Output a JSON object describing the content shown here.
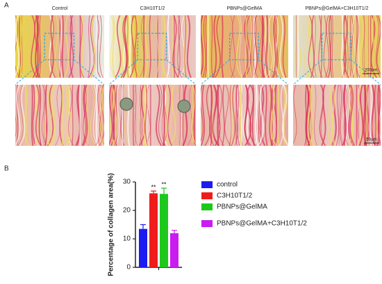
{
  "panel_a": {
    "label": "A",
    "columns": [
      "Control",
      "C3H10T1/2",
      "PBNPs@GelMA",
      "PBNPs@GelMA+C3H10T1/2"
    ],
    "scale_bars": [
      "200μm",
      "50μm"
    ]
  },
  "chart_data": {
    "type": "bar",
    "panel_label": "B",
    "ylabel": "Percentage of collagen area(%)",
    "categories": [
      null
    ],
    "series": [
      {
        "name": "control",
        "color": "#1c1cf0",
        "values": [
          13.5
        ],
        "errors": [
          1.5
        ]
      },
      {
        "name": "C3H10T1/2",
        "color": "#f01c1c",
        "values": [
          26
        ],
        "errors": [
          0.8
        ]
      },
      {
        "name": "PBNPs@GelMA",
        "color": "#1cc81c",
        "values": [
          25.8
        ],
        "errors": [
          2
        ]
      },
      {
        "name": "PBNPs@GelMA+C3H10T1/2",
        "color": "#c81cf0",
        "values": [
          12
        ],
        "errors": [
          1
        ]
      }
    ],
    "annotations": [
      "**",
      "**"
    ],
    "ylim": [
      0,
      30
    ],
    "yticks": [
      0,
      10,
      20,
      30
    ]
  }
}
